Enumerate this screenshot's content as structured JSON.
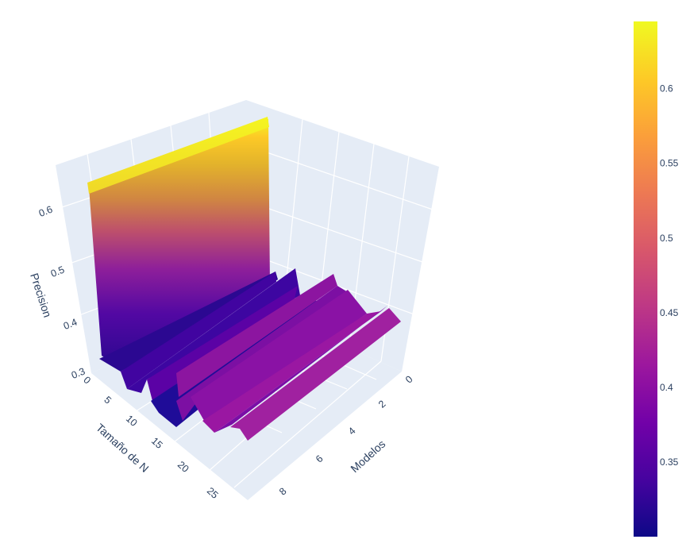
{
  "chart_data": {
    "type": "surface",
    "title": "",
    "xlabel": "Modelos",
    "ylabel": "Tamaño de N",
    "zlabel": "Precision",
    "x_ticks": [
      "0",
      "2",
      "4",
      "6",
      "8"
    ],
    "y_ticks": [
      "0",
      "5",
      "10",
      "15",
      "20",
      "25"
    ],
    "z_ticks": [
      "0.3",
      "0.4",
      "0.5",
      "0.6"
    ],
    "colorbar": {
      "colorscale": "plasma",
      "ticks": [
        "0.35",
        "0.4",
        "0.45",
        "0.5",
        "0.55",
        "0.6"
      ],
      "min": 0.3,
      "max": 0.645
    },
    "x": [
      0,
      1,
      2,
      3,
      4,
      5,
      6,
      7,
      8,
      9
    ],
    "z_by_model": [
      0.64,
      0.3,
      0.32,
      0.34,
      0.33,
      0.38,
      0.39,
      0.38,
      0.4,
      0.39
    ]
  }
}
